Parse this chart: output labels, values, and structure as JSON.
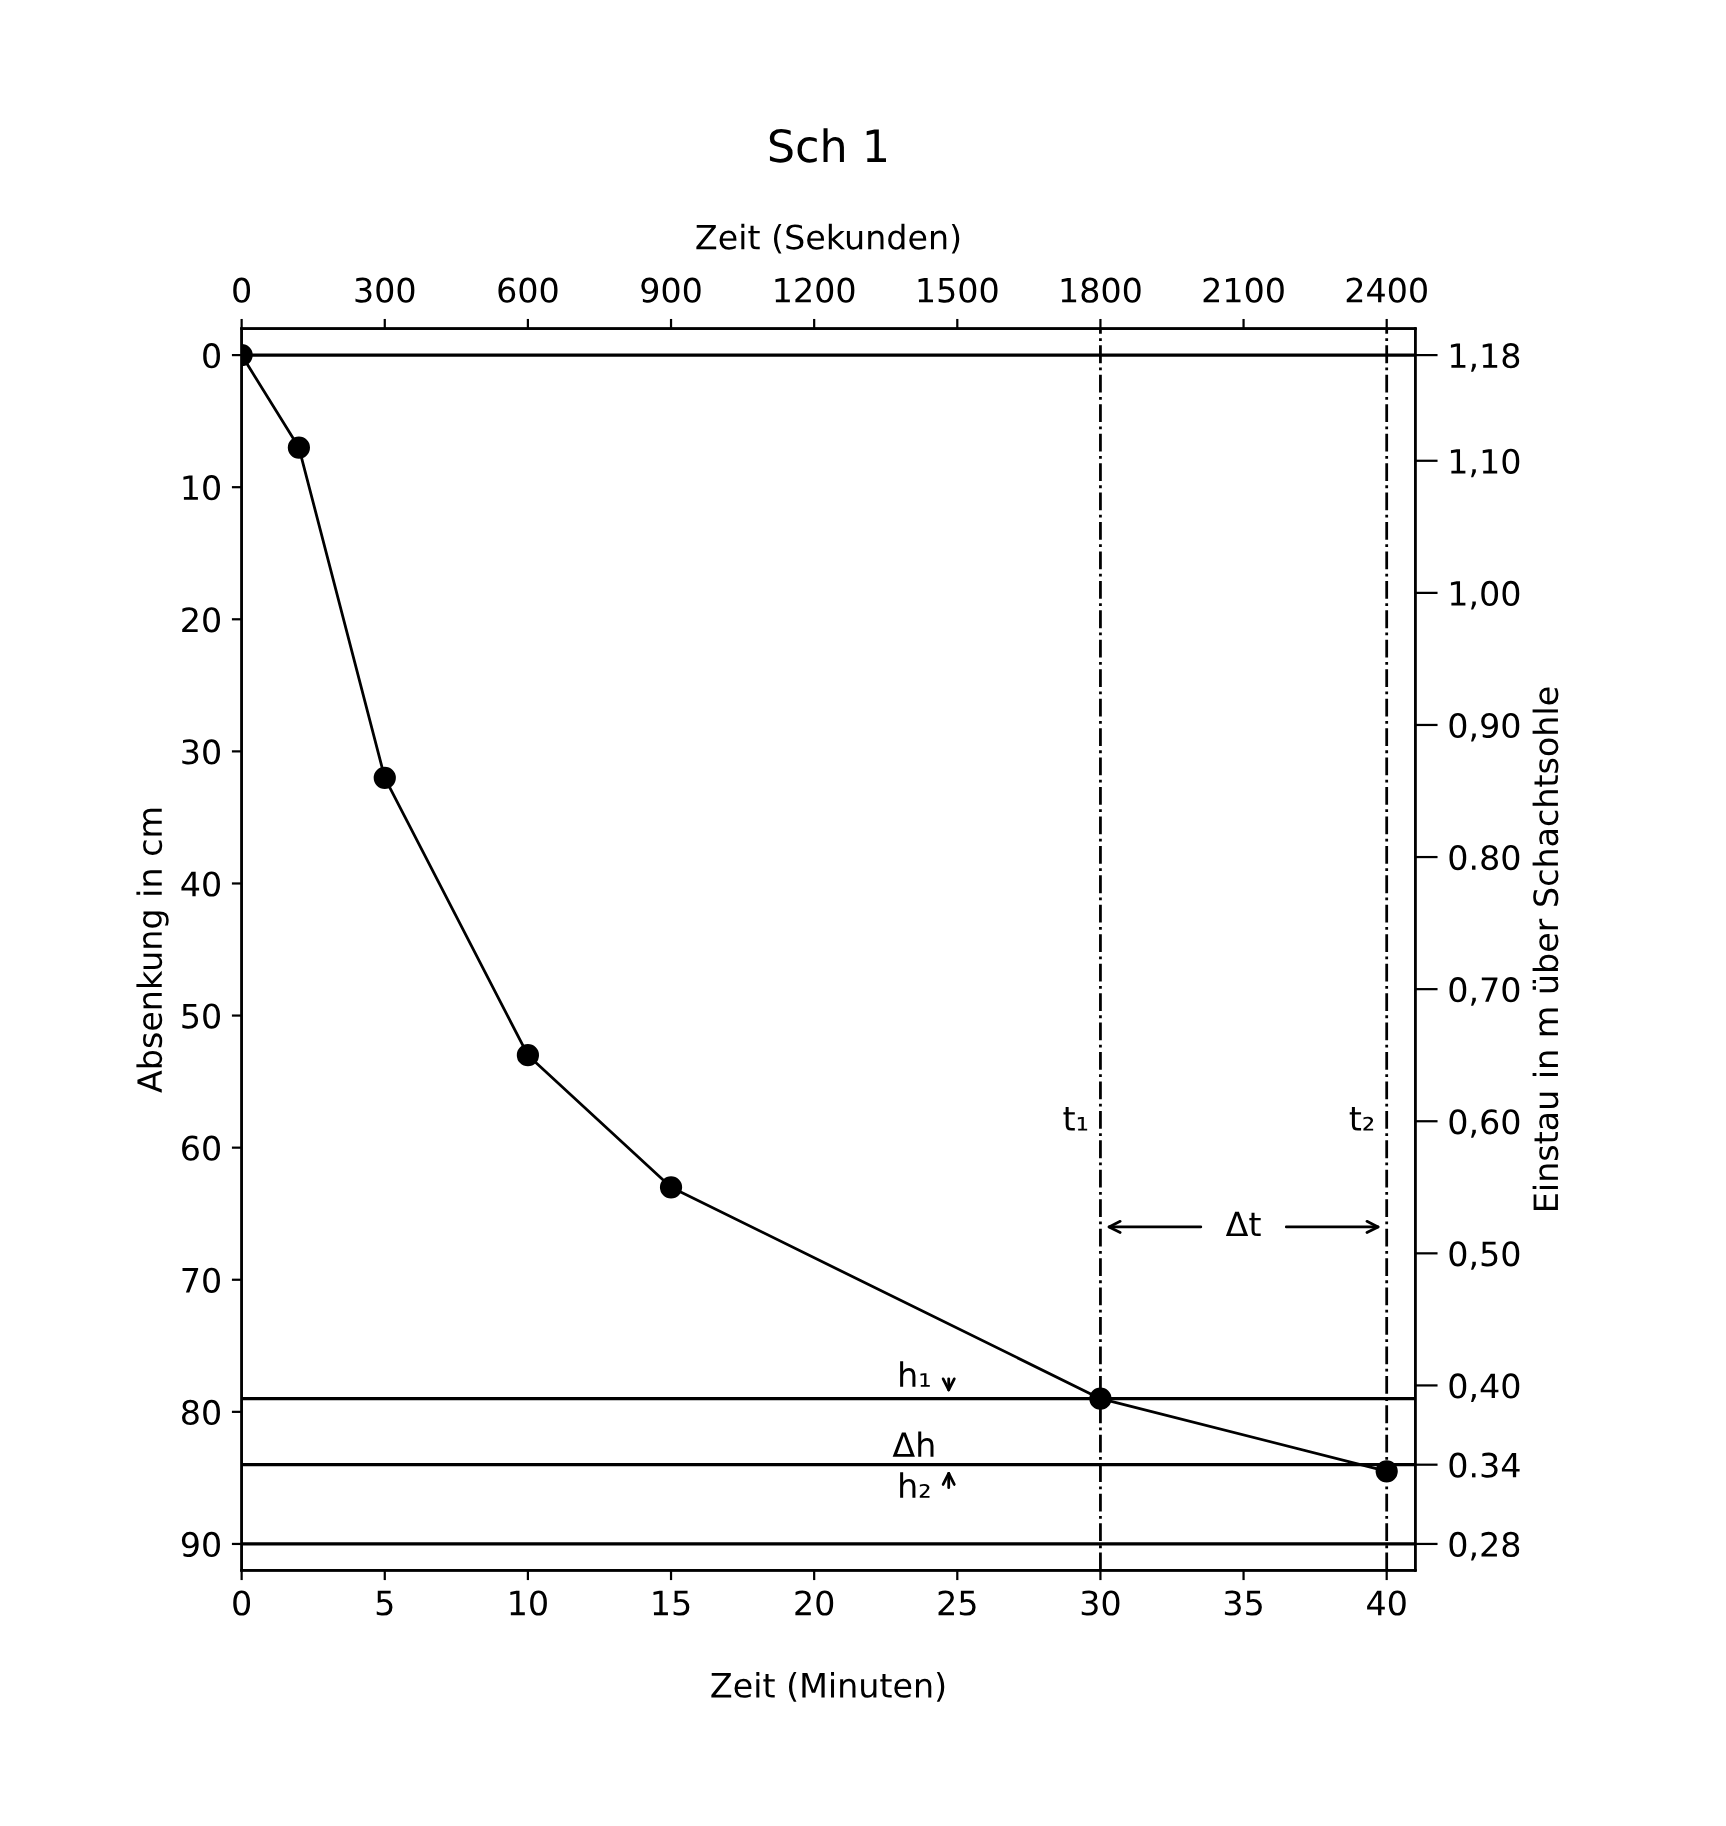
{
  "chart_data": {
    "type": "line",
    "title": "Sch 1",
    "xlabel": "Zeit (Minuten)",
    "x2label": "Zeit (Sekunden)",
    "ylabel": "Absenkung in cm",
    "y2label": "Einstau in m über Schachtsohle",
    "x": [
      0,
      2,
      5,
      10,
      15,
      30,
      40
    ],
    "series": [
      {
        "color": "#000000",
        "values": [
          0,
          7,
          32,
          53,
          63,
          79,
          84.5
        ]
      }
    ],
    "xlim": [
      0,
      41
    ],
    "xticks": [
      0,
      5,
      10,
      15,
      20,
      25,
      30,
      35,
      40
    ],
    "x2lim": [
      0,
      2460
    ],
    "x2ticks": [
      0,
      300,
      600,
      900,
      1200,
      1500,
      1800,
      2100,
      2400
    ],
    "ylim": [
      92,
      -2
    ],
    "yticks": [
      0,
      10,
      20,
      30,
      40,
      50,
      60,
      70,
      80,
      90
    ],
    "y2lim": [
      0.26,
      1.2
    ],
    "y2ticks": [
      {
        "value": 1.18,
        "label": "1,18"
      },
      {
        "value": 1.1,
        "label": "1,10"
      },
      {
        "value": 1.0,
        "label": "1,00"
      },
      {
        "value": 0.9,
        "label": "0,90"
      },
      {
        "value": 0.8,
        "label": "0.80"
      },
      {
        "value": 0.7,
        "label": "0,70"
      },
      {
        "value": 0.6,
        "label": "0,60"
      },
      {
        "value": 0.5,
        "label": "0,50"
      },
      {
        "value": 0.4,
        "label": "0,40"
      },
      {
        "value": 0.34,
        "label": "0.34"
      },
      {
        "value": 0.28,
        "label": "0,28"
      }
    ],
    "ref_lines": [
      {
        "axis": "y",
        "value": 0,
        "label": null,
        "line_style": "solid"
      },
      {
        "axis": "y",
        "value": 79,
        "label": null,
        "line_style": "solid"
      },
      {
        "axis": "y",
        "value": 84,
        "label": null,
        "line_style": "solid"
      },
      {
        "axis": "y",
        "value": 90,
        "label": null,
        "line_style": "solid"
      },
      {
        "axis": "x",
        "value": 30,
        "label": "t₁",
        "line_style": "dashdot"
      },
      {
        "axis": "x",
        "value": 40,
        "label": "t₂",
        "line_style": "dashdot"
      }
    ],
    "annotations": [
      "h₁",
      "Δh",
      "h₂",
      "Δt"
    ],
    "marker": "circle",
    "line_style": "solid",
    "grid": false,
    "legend": false
  }
}
